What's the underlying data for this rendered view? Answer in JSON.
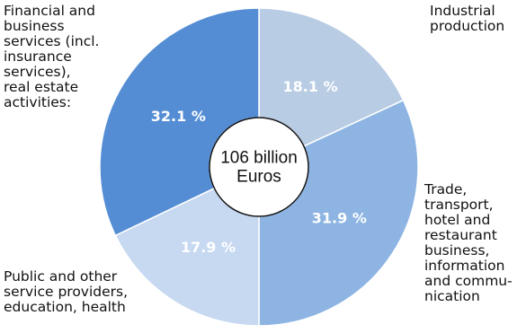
{
  "chart_data": {
    "type": "pie",
    "variant": "donut",
    "center_label": "106 billion\nEuros",
    "slices": [
      {
        "label": "Industrial\nproduction",
        "value": 18.1,
        "value_label": "18.1 %",
        "color": "#b8cce4"
      },
      {
        "label": "Trade,\ntransport,\nhotel and\nrestaurant\nbusiness,\ninformation\nand commu-\nnication",
        "value": 31.9,
        "value_label": "31.9 %",
        "color": "#8db4e2"
      },
      {
        "label": "Public and other\nservice providers,\neducation, health",
        "value": 17.9,
        "value_label": "17.9 %",
        "color": "#c6d9f1"
      },
      {
        "label": "Financial and\nbusiness\nservices (incl.\ninsurance\nservices),\nreal estate\nactivities:",
        "value": 32.1,
        "value_label": "32.1 %",
        "color": "#548dd4"
      }
    ],
    "start_angle": "12 o'clock",
    "direction": "clockwise",
    "value_label_color": "#ffffff",
    "slice_border_color": "#ffffff"
  }
}
